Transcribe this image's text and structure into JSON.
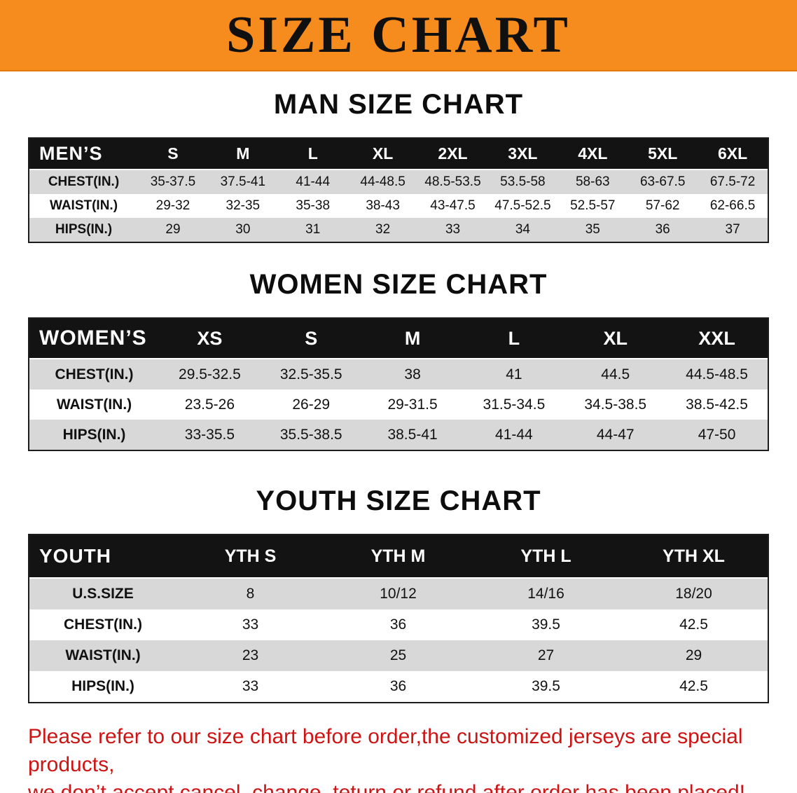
{
  "banner": {
    "title": "SIZE CHART",
    "bg_color": "#f68b1e",
    "text_color": "#101010"
  },
  "sections": [
    {
      "heading": "MAN SIZE CHART",
      "table": {
        "label": "MEN’S",
        "columns": [
          "S",
          "M",
          "L",
          "XL",
          "2XL",
          "3XL",
          "4XL",
          "5XL",
          "6XL"
        ],
        "rows": [
          {
            "label": "CHEST(IN.)",
            "values": [
              "35-37.5",
              "37.5-41",
              "41-44",
              "44-48.5",
              "48.5-53.5",
              "53.5-58",
              "58-63",
              "63-67.5",
              "67.5-72"
            ]
          },
          {
            "label": "WAIST(IN.)",
            "values": [
              "29-32",
              "32-35",
              "35-38",
              "38-43",
              "43-47.5",
              "47.5-52.5",
              "52.5-57",
              "57-62",
              "62-66.5"
            ]
          },
          {
            "label": "HIPS(IN.)",
            "values": [
              "29",
              "30",
              "31",
              "32",
              "33",
              "34",
              "35",
              "36",
              "37"
            ]
          }
        ]
      }
    },
    {
      "heading": "WOMEN SIZE CHART",
      "table": {
        "label": "WOMEN’S",
        "columns": [
          "XS",
          "S",
          "M",
          "L",
          "XL",
          "XXL"
        ],
        "rows": [
          {
            "label": "CHEST(IN.)",
            "values": [
              "29.5-32.5",
              "32.5-35.5",
              "38",
              "41",
              "44.5",
              "44.5-48.5"
            ]
          },
          {
            "label": "WAIST(IN.)",
            "values": [
              "23.5-26",
              "26-29",
              "29-31.5",
              "31.5-34.5",
              "34.5-38.5",
              "38.5-42.5"
            ]
          },
          {
            "label": "HIPS(IN.)",
            "values": [
              "33-35.5",
              "35.5-38.5",
              "38.5-41",
              "41-44",
              "44-47",
              "47-50"
            ]
          }
        ]
      }
    },
    {
      "heading": "YOUTH SIZE CHART",
      "table": {
        "label": "YOUTH",
        "columns": [
          "YTH S",
          "YTH M",
          "YTH L",
          "YTH XL"
        ],
        "rows": [
          {
            "label": "U.S.SIZE",
            "values": [
              "8",
              "10/12",
              "14/16",
              "18/20"
            ]
          },
          {
            "label": "CHEST(IN.)",
            "values": [
              "33",
              "36",
              "39.5",
              "42.5"
            ]
          },
          {
            "label": "WAIST(IN.)",
            "values": [
              "23",
              "25",
              "27",
              "29"
            ]
          },
          {
            "label": "HIPS(IN.)",
            "values": [
              "33",
              "36",
              "39.5",
              "42.5"
            ]
          }
        ]
      }
    }
  ],
  "footer": {
    "lines": [
      "Please refer to our size chart before order,the customized jerseys are special products,",
      "we don’t accept cancel, change, teturn or refund after order has been placed!"
    ],
    "text_color": "#cc1414"
  }
}
